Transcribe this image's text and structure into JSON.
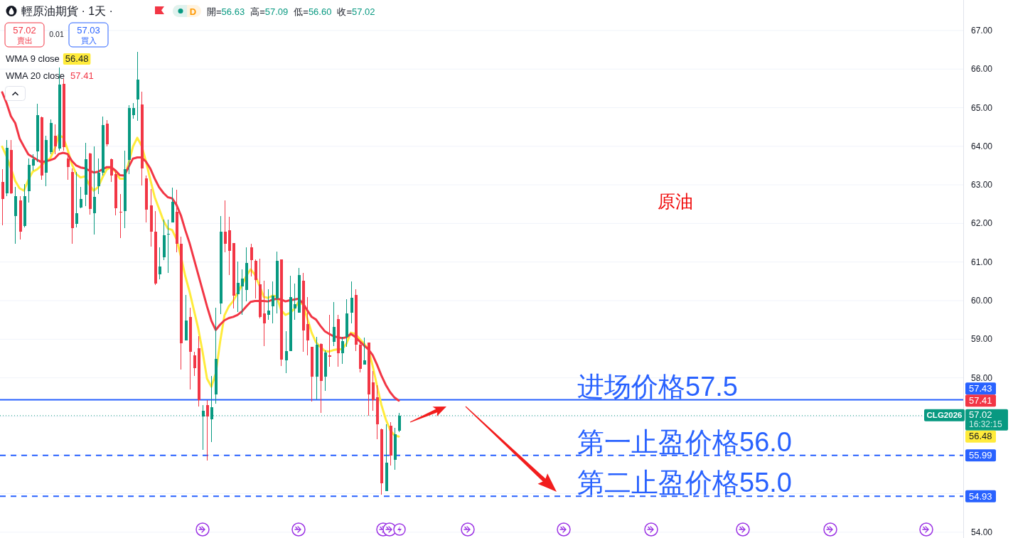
{
  "chart_data": {
    "type": "candlestick",
    "title": "輕原油期貨 · 1天 ·",
    "categories": [
      null,
      null,
      null,
      null,
      null,
      null,
      null,
      null,
      null,
      null,
      null,
      null,
      null,
      null,
      null,
      null,
      null,
      null,
      null,
      null,
      null,
      null,
      null,
      null,
      null,
      null,
      null,
      null,
      null,
      null,
      null,
      null,
      null,
      null,
      null,
      null,
      null,
      null,
      null,
      null,
      null,
      null,
      null,
      null,
      null,
      null,
      null,
      null,
      null,
      null,
      null,
      null,
      null,
      null,
      null,
      null,
      null,
      null,
      null,
      null,
      null,
      null,
      null,
      null,
      null,
      null,
      null,
      null,
      null,
      null,
      null,
      null,
      null,
      null,
      null,
      null,
      null,
      null,
      null,
      null,
      null,
      null,
      null,
      null,
      null,
      null,
      null,
      null,
      null,
      null,
      null,
      null,
      null,
      null,
      null,
      null,
      null,
      null,
      null,
      null,
      null,
      null,
      null,
      null,
      null,
      null,
      null,
      null,
      null,
      null,
      null,
      null,
      null,
      null,
      null,
      null,
      null,
      null,
      null,
      null,
      null,
      null,
      null,
      null,
      null,
      null,
      null,
      null,
      null,
      null,
      null,
      null,
      null,
      null,
      null,
      null,
      null,
      null,
      null,
      null,
      null,
      null,
      null,
      null,
      null,
      null,
      null,
      null,
      null,
      null,
      null,
      null,
      null,
      null,
      null,
      null,
      null,
      null,
      null,
      null,
      null,
      null,
      null,
      null,
      null,
      null,
      null,
      null,
      null,
      null,
      null,
      null,
      null,
      null,
      null,
      null,
      null,
      null,
      null,
      null,
      null,
      null,
      null,
      null,
      null,
      null,
      null,
      null,
      null,
      null,
      null,
      null,
      null,
      null,
      null,
      null,
      null,
      null,
      null,
      null,
      null,
      null,
      null,
      null,
      null,
      null,
      null,
      null,
      null,
      null,
      null,
      null,
      null,
      null,
      null,
      null,
      null,
      null,
      null,
      null,
      null
    ],
    "ohlc": [
      [
        63.07,
        63.4,
        61.95,
        62.64
      ],
      [
        62.79,
        64.17,
        62.7,
        63.96
      ],
      [
        63.91,
        64.17,
        62.76,
        62.79
      ],
      [
        62.19,
        62.94,
        61.47,
        62.71
      ],
      [
        62.59,
        62.7,
        61.59,
        61.78
      ],
      [
        61.94,
        63.02,
        61.9,
        62.71
      ],
      [
        62.84,
        63.68,
        62.54,
        63.51
      ],
      [
        63.5,
        63.8,
        63.37,
        63.67
      ],
      [
        63.86,
        65.1,
        63.59,
        64.81
      ],
      [
        64.75,
        64.77,
        63.14,
        63.25
      ],
      [
        63.32,
        64.28,
        62.97,
        64.17
      ],
      [
        63.85,
        64.69,
        63.8,
        64.6
      ],
      [
        64.28,
        64.57,
        63.8,
        64.0
      ],
      [
        63.95,
        66.04,
        63.89,
        65.6
      ],
      [
        65.61,
        65.74,
        63.89,
        63.97
      ],
      [
        63.68,
        63.8,
        63.13,
        63.47
      ],
      [
        63.34,
        63.43,
        61.47,
        61.87
      ],
      [
        61.99,
        63.34,
        61.9,
        62.27
      ],
      [
        62.42,
        62.94,
        62.39,
        62.64
      ],
      [
        62.74,
        64.08,
        62.45,
        63.67
      ],
      [
        63.81,
        63.83,
        62.22,
        62.37
      ],
      [
        62.26,
        63.99,
        61.71,
        62.68
      ],
      [
        62.96,
        63.68,
        62.76,
        63.31
      ],
      [
        63.31,
        64.77,
        63.25,
        64.54
      ],
      [
        64.59,
        64.68,
        63.99,
        64.05
      ],
      [
        63.67,
        63.68,
        63.07,
        63.25
      ],
      [
        63.27,
        63.37,
        62.21,
        62.39
      ],
      [
        62.3,
        62.76,
        61.62,
        62.28
      ],
      [
        62.33,
        63.89,
        61.87,
        63.4
      ],
      [
        63.64,
        65.06,
        63.28,
        64.99
      ],
      [
        64.8,
        65.12,
        64.72,
        64.99
      ],
      [
        65.21,
        66.44,
        64.66,
        65.73
      ],
      [
        65.09,
        65.41,
        62.99,
        63.43
      ],
      [
        63.16,
        63.25,
        62.02,
        62.36
      ],
      [
        62.47,
        62.89,
        61.4,
        61.78
      ],
      [
        61.78,
        62.33,
        60.41,
        60.45
      ],
      [
        60.69,
        61.38,
        60.56,
        60.88
      ],
      [
        61.13,
        62.1,
        61.05,
        61.69
      ],
      [
        61.71,
        62.1,
        60.72,
        61.73
      ],
      [
        62.03,
        62.92,
        62.03,
        62.56
      ],
      [
        62.3,
        62.87,
        61.25,
        61.48
      ],
      [
        61.48,
        61.66,
        58.22,
        58.89
      ],
      [
        58.97,
        60.15,
        58.97,
        59.48
      ],
      [
        59.57,
        59.81,
        57.69,
        58.67
      ],
      [
        58.59,
        58.67,
        58.05,
        58.25
      ],
      [
        58.76,
        59.08,
        57.26,
        57.43
      ],
      [
        57.0,
        57.3,
        56.14,
        57.14
      ],
      [
        57.3,
        57.42,
        55.85,
        57.0
      ],
      [
        56.92,
        58.05,
        56.34,
        57.23
      ],
      [
        57.57,
        59.82,
        57.33,
        58.49
      ],
      [
        59.92,
        62.19,
        59.65,
        61.78
      ],
      [
        61.78,
        62.6,
        61.25,
        61.47
      ],
      [
        61.82,
        62.17,
        60.66,
        61.29
      ],
      [
        61.49,
        61.49,
        59.79,
        60.13
      ],
      [
        60.16,
        61.01,
        59.7,
        60.47
      ],
      [
        60.37,
        60.81,
        59.64,
        60.57
      ],
      [
        60.28,
        61.38,
        59.99,
        60.97
      ],
      [
        61.39,
        61.48,
        60.63,
        61.05
      ],
      [
        61.03,
        61.07,
        60.06,
        60.54
      ],
      [
        60.43,
        61.09,
        59.54,
        59.58
      ],
      [
        59.67,
        60.52,
        58.83,
        59.41
      ],
      [
        59.64,
        60.29,
        59.51,
        59.74
      ],
      [
        59.86,
        60.49,
        59.41,
        60.13
      ],
      [
        60.06,
        61.27,
        59.66,
        61.04
      ],
      [
        61.06,
        61.06,
        58.3,
        58.48
      ],
      [
        58.46,
        59.21,
        58.12,
        58.7
      ],
      [
        58.7,
        60.64,
        58.7,
        60.1
      ],
      [
        59.79,
        60.44,
        59.51,
        59.9
      ],
      [
        59.69,
        60.84,
        59.69,
        60.67
      ],
      [
        60.52,
        60.71,
        58.68,
        59.23
      ],
      [
        59.4,
        60.09,
        58.58,
        58.97
      ],
      [
        58.81,
        58.81,
        57.38,
        58.03
      ],
      [
        58.03,
        59.06,
        57.44,
        58.85
      ],
      [
        58.88,
        58.89,
        57.1,
        57.92
      ],
      [
        58.03,
        58.71,
        57.66,
        58.65
      ],
      [
        58.59,
        59.63,
        58.28,
        58.54
      ],
      [
        58.94,
        59.97,
        58.83,
        59.32
      ],
      [
        59.52,
        59.63,
        58.28,
        58.63
      ],
      [
        58.63,
        59.06,
        58.37,
        58.95
      ],
      [
        59.06,
        60.03,
        58.8,
        59.67
      ],
      [
        59.69,
        60.5,
        59.41,
        60.08
      ],
      [
        60.15,
        60.29,
        58.69,
        58.86
      ],
      [
        58.86,
        58.97,
        58.14,
        58.23
      ],
      [
        58.35,
        59.05,
        58.34,
        58.45
      ],
      [
        58.91,
        58.91,
        57.02,
        57.57
      ],
      [
        57.88,
        58.17,
        57.15,
        57.43
      ],
      [
        57.5,
        57.8,
        56.41,
        56.8
      ],
      [
        56.66,
        56.68,
        54.98,
        55.26
      ],
      [
        55.06,
        56.8,
        55.06,
        55.8
      ],
      [
        56.76,
        56.85,
        55.73,
        55.98
      ],
      [
        55.88,
        56.7,
        55.61,
        56.53
      ],
      [
        56.63,
        57.09,
        56.6,
        57.02
      ],
      null,
      null,
      null,
      null,
      null,
      null,
      null,
      null,
      null,
      null,
      null,
      null,
      null,
      null,
      null,
      null,
      null,
      null,
      null,
      null,
      null,
      null,
      null,
      null,
      null,
      null,
      null,
      null,
      null,
      null,
      null,
      null,
      null,
      null,
      null,
      null,
      null,
      null,
      null,
      null,
      null,
      null,
      null,
      null,
      null,
      null,
      null,
      null,
      null,
      null,
      null,
      null,
      null,
      null,
      null,
      null,
      null,
      null,
      null,
      null,
      null,
      null,
      null,
      null,
      null,
      null,
      null,
      null,
      null,
      null,
      null,
      null,
      null,
      null,
      null,
      null,
      null,
      null,
      null,
      null,
      null,
      null,
      null,
      null,
      null,
      null,
      null,
      null,
      null,
      null,
      null,
      null,
      null,
      null,
      null,
      null,
      null,
      null,
      null,
      null,
      null,
      null,
      null,
      null,
      null,
      null,
      null,
      null,
      null,
      null,
      null,
      null,
      null,
      null,
      null,
      null,
      null,
      null,
      null,
      null,
      null,
      null,
      null,
      null,
      null,
      null,
      null,
      null,
      null
    ],
    "colors": [
      "#f23645",
      "#089981",
      "#f23645",
      "#089981",
      "#f23645",
      "#089981",
      "#089981",
      "#089981",
      "#089981",
      "#f23645",
      "#089981",
      "#089981",
      "#f23645",
      "#089981",
      "#f23645",
      "#f23645",
      "#f23645",
      "#089981",
      "#089981",
      "#089981",
      "#f23645",
      "#089981",
      "#089981",
      "#089981",
      "#f23645",
      "#f23645",
      "#f23645",
      "#f23645",
      "#089981",
      "#089981",
      "#089981",
      "#089981",
      "#f23645",
      "#f23645",
      "#f23645",
      "#f23645",
      "#089981",
      "#089981",
      "#089981",
      "#089981",
      "#f23645",
      "#f23645",
      "#089981",
      "#f23645",
      "#f23645",
      "#f23645",
      "#089981",
      "#f23645",
      "#089981",
      "#089981",
      "#089981",
      "#f23645",
      "#f23645",
      "#f23645",
      "#089981",
      "#089981",
      "#089981",
      "#f23645",
      "#f23645",
      "#f23645",
      "#f23645",
      "#089981",
      "#089981",
      "#089981",
      "#f23645",
      "#089981",
      "#089981",
      "#089981",
      "#089981",
      "#f23645",
      "#f23645",
      "#f23645",
      "#089981",
      "#f23645",
      "#089981",
      "#f23645",
      "#089981",
      "#f23645",
      "#089981",
      "#089981",
      "#089981",
      "#f23645",
      "#f23645",
      "#089981",
      "#f23645",
      "#f23645",
      "#f23645",
      "#f23645",
      "#089981",
      "#f23645",
      "#089981",
      "#089981",
      null,
      null,
      null,
      null,
      null,
      null,
      null,
      null,
      null,
      null,
      null,
      null,
      null,
      null,
      null,
      null,
      null,
      null,
      null,
      null,
      null,
      null,
      null,
      null,
      null,
      null,
      null,
      null,
      null,
      null,
      null,
      null,
      null,
      null,
      null,
      null,
      null,
      null,
      null,
      null,
      null,
      null,
      null,
      null,
      null,
      null,
      null,
      null,
      null,
      null,
      null,
      null,
      null,
      null,
      null,
      null,
      null,
      null,
      null,
      null,
      null,
      null,
      null,
      null,
      null,
      null,
      null,
      null,
      null,
      null,
      null,
      null,
      null,
      null,
      null,
      null,
      null,
      null,
      null,
      null,
      null,
      null,
      null,
      null,
      null,
      null,
      null,
      null,
      null,
      null,
      null,
      null,
      null,
      null,
      null,
      null,
      null,
      null,
      null,
      null,
      null,
      null,
      null,
      null,
      null,
      null,
      null,
      null,
      null,
      null,
      null,
      null,
      null,
      null,
      null,
      null,
      null,
      null,
      null,
      null,
      null,
      null,
      null,
      null,
      null,
      null,
      null,
      null,
      null
    ],
    "series": [
      {
        "name": "WMA 9 close",
        "type": "line",
        "color": "#ffeb3b",
        "values": [
          63.99,
          63.74,
          63.43,
          63.1,
          62.91,
          62.85,
          63.13,
          63.34,
          63.4,
          63.5,
          63.62,
          63.68,
          63.92,
          64.29,
          64.23,
          63.92,
          63.53,
          63.28,
          63.19,
          63.22,
          63.0,
          62.85,
          62.94,
          63.19,
          63.4,
          63.46,
          63.34,
          63.16,
          63.16,
          63.56,
          63.99,
          64.22,
          64.01,
          63.6,
          63.13,
          62.68,
          62.38,
          62.07,
          61.87,
          61.83,
          61.59,
          61.15,
          60.64,
          60.23,
          59.75,
          59.27,
          58.66,
          57.98,
          57.77,
          58.11,
          58.93,
          59.62,
          59.85,
          59.99,
          60.2,
          60.4,
          60.64,
          60.81,
          60.67,
          60.4,
          60.1,
          60.07,
          60.13,
          60.11,
          59.75,
          59.63,
          59.68,
          59.78,
          59.97,
          59.9,
          59.54,
          59.17,
          58.92,
          58.8,
          58.7,
          58.68,
          58.72,
          58.74,
          58.74,
          58.89,
          59.17,
          59.14,
          59.01,
          58.89,
          58.74,
          58.31,
          57.79,
          57.3,
          56.93,
          56.65,
          56.51,
          56.48,
          null,
          null,
          null,
          null,
          null,
          null,
          null,
          null,
          null,
          null,
          null,
          null,
          null,
          null,
          null,
          null,
          null,
          null,
          null,
          null,
          null,
          null,
          null,
          null,
          null,
          null,
          null,
          null,
          null,
          null,
          null,
          null,
          null,
          null,
          null,
          null,
          null,
          null,
          null,
          null,
          null,
          null,
          null,
          null,
          null,
          null,
          null,
          null,
          null,
          null,
          null,
          null,
          null,
          null,
          null,
          null,
          null,
          null,
          null,
          null,
          null,
          null,
          null,
          null,
          null,
          null,
          null,
          null,
          null,
          null,
          null,
          null,
          null,
          null,
          null,
          null,
          null,
          null,
          null,
          null,
          null,
          null,
          null,
          null,
          null,
          null,
          null,
          null,
          null,
          null,
          null,
          null,
          null,
          null,
          null,
          null,
          null,
          null,
          null,
          null,
          null,
          null,
          null,
          null,
          null,
          null,
          null,
          null,
          null,
          null,
          null,
          null,
          null,
          null,
          null,
          null,
          null,
          null,
          null,
          null,
          null,
          null,
          null,
          null,
          null,
          null,
          null,
          null,
          null
        ]
      },
      {
        "name": "WMA 20 close",
        "type": "line",
        "color": "#f23645",
        "values": [
          65.4,
          65.12,
          64.78,
          64.6,
          64.2,
          63.99,
          63.79,
          63.72,
          63.65,
          63.59,
          63.61,
          63.64,
          63.68,
          63.8,
          63.83,
          63.8,
          63.62,
          63.5,
          63.45,
          63.43,
          63.37,
          63.32,
          63.34,
          63.4,
          63.46,
          63.46,
          63.37,
          63.25,
          63.24,
          63.46,
          63.68,
          63.71,
          63.71,
          63.6,
          63.42,
          63.16,
          62.94,
          62.79,
          62.68,
          62.65,
          62.48,
          62.21,
          61.83,
          61.49,
          61.08,
          60.67,
          60.26,
          59.85,
          59.48,
          59.24,
          59.38,
          59.49,
          59.55,
          59.58,
          59.63,
          59.72,
          59.85,
          59.97,
          59.99,
          59.99,
          59.99,
          59.98,
          60.02,
          60.05,
          60.03,
          59.98,
          60.01,
          60.03,
          60.05,
          59.93,
          59.75,
          59.58,
          59.51,
          59.35,
          59.21,
          59.14,
          59.08,
          59.05,
          59.03,
          59.05,
          59.14,
          59.06,
          58.95,
          58.84,
          58.74,
          58.59,
          58.34,
          58.06,
          57.82,
          57.63,
          57.49,
          57.41,
          null,
          null,
          null,
          null,
          null,
          null,
          null,
          null,
          null,
          null,
          null,
          null,
          null,
          null,
          null,
          null,
          null,
          null,
          null,
          null,
          null,
          null,
          null,
          null,
          null,
          null,
          null,
          null,
          null,
          null,
          null,
          null,
          null,
          null,
          null,
          null,
          null,
          null,
          null,
          null,
          null,
          null,
          null,
          null,
          null,
          null,
          null,
          null,
          null,
          null,
          null,
          null,
          null,
          null,
          null,
          null,
          null,
          null,
          null,
          null,
          null,
          null,
          null,
          null,
          null,
          null,
          null,
          null,
          null,
          null,
          null,
          null,
          null,
          null,
          null,
          null,
          null,
          null,
          null,
          null,
          null,
          null,
          null,
          null,
          null,
          null,
          null,
          null,
          null,
          null,
          null,
          null,
          null,
          null,
          null,
          null,
          null,
          null,
          null,
          null,
          null,
          null,
          null,
          null,
          null,
          null,
          null,
          null,
          null,
          null,
          null,
          null,
          null,
          null,
          null,
          null,
          null,
          null,
          null,
          null,
          null,
          null,
          null,
          null,
          null,
          null,
          null,
          null,
          null
        ]
      }
    ],
    "ylim": [
      53.85,
      67.79
    ],
    "yticks": [
      {
        "value": 54,
        "label": "54.00"
      },
      {
        "value": 55,
        "label": null
      },
      {
        "value": 56,
        "label": null
      },
      {
        "value": 57,
        "label": null
      },
      {
        "value": 58,
        "label": "58.00"
      },
      {
        "value": 59,
        "label": "59.00"
      },
      {
        "value": 60,
        "label": "60.00"
      },
      {
        "value": 61,
        "label": "61.00"
      },
      {
        "value": 62,
        "label": "62.00"
      },
      {
        "value": 63,
        "label": "63.00"
      },
      {
        "value": 64,
        "label": "64.00"
      },
      {
        "value": 65,
        "label": "65.00"
      },
      {
        "value": 66,
        "label": "66.00"
      },
      {
        "value": 67,
        "label": "67.00"
      }
    ],
    "ref_lines": [
      {
        "axis": "y",
        "value": 57.43,
        "label": "进场价格57.5",
        "color": "#2962ff",
        "line_style": "solid"
      },
      {
        "axis": "y",
        "value": 57.02,
        "color": "#089981",
        "line_style": "dotted"
      },
      {
        "axis": "y",
        "value": 55.99,
        "label": "第一止盈价格56.0",
        "color": "#2962ff",
        "line_style": "dashed"
      },
      {
        "axis": "y",
        "value": 54.93,
        "label": "第二止盈价格55.0",
        "color": "#2962ff",
        "line_style": "dashed"
      }
    ],
    "annotations": [
      "開=56.63 高=57.09 低=56.60 收=57.02",
      "57.02",
      "賣出",
      "0.01",
      "57.03",
      "買入",
      "D",
      "原油",
      "56.48",
      "57.41",
      "CLG2026",
      "16:32:15",
      "57.43",
      "57.02",
      "55.99",
      "54.93",
      "56.48",
      "57.41"
    ],
    "grid": "y",
    "legend": "top left",
    "tick_labels": "y"
  }
}
